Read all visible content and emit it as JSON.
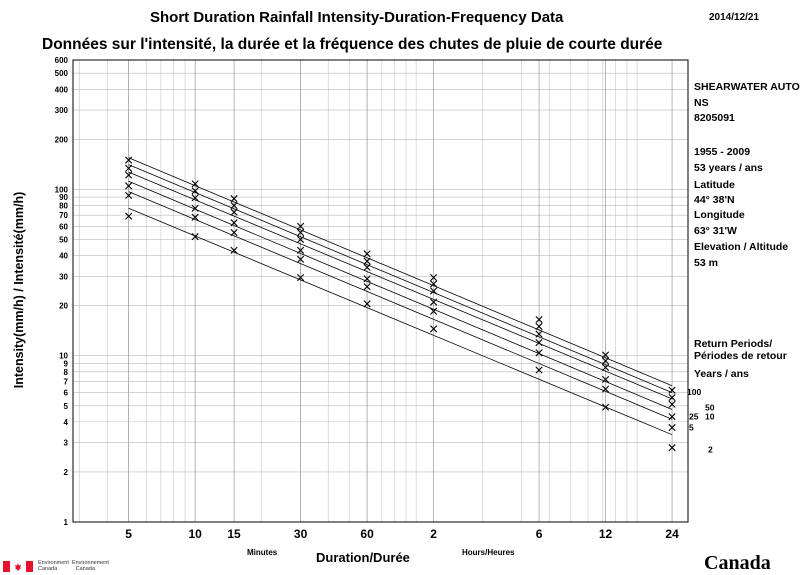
{
  "header": {
    "title_en": "Short Duration Rainfall Intensity-Duration-Frequency Data",
    "title_fr": "Données sur l'intensité, la durée et la fréquence des chutes de pluie de courte durée",
    "date": "2014/12/21"
  },
  "station": {
    "name": "SHEARWATER AUTO",
    "province": "NS",
    "id": "8205091",
    "period": "1955 - 2009",
    "years": "53 years / ans",
    "lat_label": "Latitude",
    "lat": "44° 38'N",
    "lon_label": "Longitude",
    "lon": "63° 31'W",
    "elev_label": "Elevation / Altitude",
    "elev": "53 m"
  },
  "legend": {
    "line1": "Return Periods/",
    "line2": "Périodes de retour",
    "line3": "Years / ans"
  },
  "axis": {
    "minutes": "Minutes",
    "hours": "Hours/Heures",
    "xlabel": "Duration/Durée",
    "ylabel": "Intensity(mm/h) / Intensité(mm/h)"
  },
  "footer": {
    "ec_en": "Environment",
    "ec_en2": "Canada",
    "ec_fr": "Environnement",
    "ec_fr2": "Canada",
    "wordmark": "Canada"
  },
  "colors": {
    "flag_red": "#e8112d",
    "grid": "#bbbbbb",
    "line": "#000000"
  },
  "chart_data": {
    "type": "line",
    "scale": "log-log",
    "x_unit": "minutes",
    "x": [
      5,
      10,
      15,
      30,
      60,
      120,
      360,
      720,
      1440
    ],
    "x_tick_labels": [
      "5",
      "10",
      "15",
      "30",
      "60",
      "2",
      "6",
      "12",
      "24"
    ],
    "y_ticks": [
      1,
      2,
      3,
      4,
      5,
      6,
      7,
      8,
      9,
      10,
      20,
      30,
      40,
      50,
      60,
      70,
      80,
      90,
      100,
      200,
      300,
      400,
      500,
      600
    ],
    "y_tick_labels": [
      "1",
      "2",
      "3",
      "4",
      "5",
      "6",
      "7",
      "8",
      "9",
      "10",
      "20",
      "30",
      "40",
      "50",
      "60",
      "70",
      "80",
      "90",
      "100",
      "200",
      "300",
      "400",
      "500",
      "600"
    ],
    "xlim": [
      2.8,
      1700
    ],
    "ylim": [
      1,
      600
    ],
    "series": [
      {
        "name": "2",
        "values": [
          69,
          52,
          43,
          29.5,
          20.5,
          14.5,
          8.2,
          4.9,
          2.8
        ],
        "fit": [
          5,
          77,
          1440,
          3.35
        ]
      },
      {
        "name": "5",
        "values": [
          92,
          68,
          55,
          38,
          26,
          18.5,
          10.4,
          6.3,
          3.7
        ],
        "fit": [
          5,
          97,
          1440,
          4.15
        ]
      },
      {
        "name": "10",
        "values": [
          105,
          77,
          63,
          43,
          29,
          21,
          12,
          7.2,
          4.3
        ],
        "fit": [
          5,
          112,
          1440,
          4.75
        ]
      },
      {
        "name": "25",
        "values": [
          122,
          89,
          73,
          50,
          34,
          24.5,
          13.5,
          8.5,
          5.1
        ],
        "fit": [
          5,
          127,
          1440,
          5.5
        ]
      },
      {
        "name": "50",
        "values": [
          134,
          98,
          80,
          55,
          37,
          27,
          15,
          9.3,
          5.6
        ],
        "fit": [
          5,
          141,
          1440,
          6.0
        ]
      },
      {
        "name": "100",
        "values": [
          150,
          108,
          88,
          60,
          41,
          29.5,
          16.5,
          10.1,
          6.2
        ],
        "fit": [
          5,
          155,
          1440,
          6.6
        ]
      }
    ]
  }
}
